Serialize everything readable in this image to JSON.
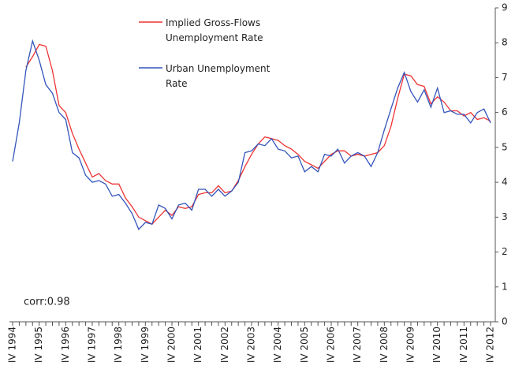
{
  "chart_data": {
    "type": "line",
    "annotation": "corr:0.98",
    "categories": [
      "IV 1994",
      null,
      null,
      null,
      "IV 1995",
      null,
      null,
      null,
      "IV 1996",
      null,
      null,
      null,
      "IV 1997",
      null,
      null,
      null,
      "IV 1998",
      null,
      null,
      null,
      "IV 1999",
      null,
      null,
      null,
      "IV 2000",
      null,
      null,
      null,
      "IV 2001",
      null,
      null,
      null,
      "IV 2002",
      null,
      null,
      null,
      "IV 2003",
      null,
      null,
      null,
      "IV 2004",
      null,
      null,
      null,
      "IV 2005",
      null,
      null,
      null,
      "IV 2006",
      null,
      null,
      null,
      "IV 2007",
      null,
      null,
      null,
      "IV 2008",
      null,
      null,
      null,
      "IV 2009",
      null,
      null,
      null,
      "IV 2010",
      null,
      null,
      null,
      "IV 2011",
      null,
      null,
      null,
      "IV 2012"
    ],
    "series": [
      {
        "name": "Implied Gross-Flows Unemployment Rate",
        "color": "#ee3333",
        "values": [
          null,
          null,
          7.3,
          7.6,
          7.95,
          7.9,
          7.2,
          6.2,
          6.0,
          5.4,
          4.95,
          4.55,
          4.15,
          4.25,
          4.05,
          3.95,
          3.95,
          3.55,
          3.3,
          3.0,
          2.9,
          2.8,
          3.0,
          3.2,
          3.05,
          3.3,
          3.25,
          3.3,
          3.65,
          3.7,
          3.7,
          3.9,
          3.7,
          3.75,
          4.05,
          4.45,
          4.8,
          5.1,
          5.3,
          5.25,
          5.2,
          5.05,
          4.95,
          4.8,
          4.6,
          4.5,
          4.4,
          4.6,
          4.8,
          4.9,
          4.9,
          4.75,
          4.8,
          4.75,
          4.8,
          4.85,
          5.05,
          5.6,
          6.4,
          7.1,
          7.05,
          6.8,
          6.75,
          6.25,
          6.45,
          6.3,
          6.05,
          6.05,
          5.9,
          6.0,
          5.8,
          5.85,
          5.75
        ]
      },
      {
        "name": "Urban Unemployment Rate",
        "color": "#3355bb",
        "values": [
          4.6,
          5.7,
          7.2,
          8.05,
          7.5,
          6.8,
          6.55,
          6.0,
          5.8,
          4.85,
          4.7,
          4.2,
          4.0,
          4.05,
          3.95,
          3.6,
          3.65,
          3.4,
          3.1,
          2.65,
          2.85,
          2.8,
          3.35,
          3.25,
          2.95,
          3.35,
          3.4,
          3.2,
          3.8,
          3.8,
          3.6,
          3.8,
          3.6,
          3.75,
          4.0,
          4.85,
          4.9,
          5.1,
          5.05,
          5.25,
          4.95,
          4.9,
          4.7,
          4.75,
          4.3,
          4.45,
          4.3,
          4.8,
          4.75,
          4.95,
          4.55,
          4.75,
          4.85,
          4.75,
          4.45,
          4.85,
          5.5,
          6.1,
          6.7,
          7.15,
          6.6,
          6.3,
          6.65,
          6.15,
          6.7,
          6.0,
          6.05,
          5.95,
          5.95,
          5.7,
          6.0,
          6.1,
          5.7
        ]
      }
    ],
    "ylim": [
      0,
      9
    ],
    "yticks": [
      0,
      1,
      2,
      3,
      4,
      5,
      6,
      7,
      8,
      9
    ],
    "grid": false
  }
}
